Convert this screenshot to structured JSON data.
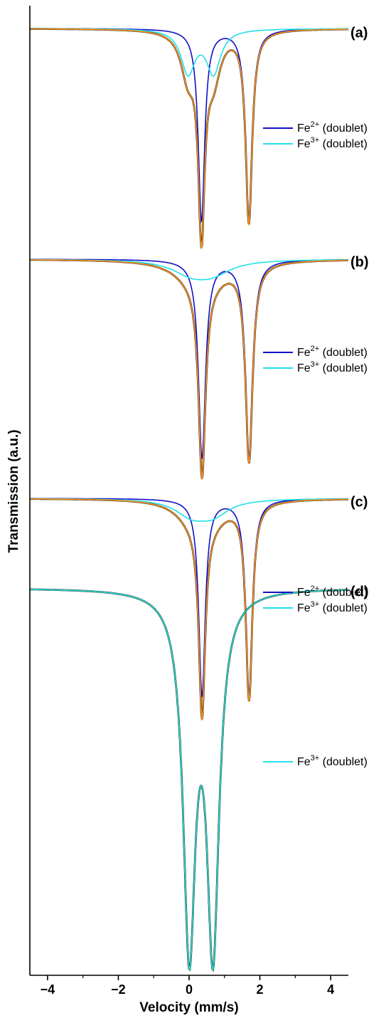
{
  "chart_data": {
    "type": "line",
    "xlabel": "Velocity (mm/s)",
    "ylabel": "Transmission (a.u.)",
    "xlim": [
      -4.5,
      4.5
    ],
    "x_ticks": [
      -4,
      -2,
      0,
      2,
      4
    ],
    "x_tick_labels": [
      "−4",
      "−2",
      "0",
      "2",
      "4"
    ],
    "colors": {
      "data": "#000000",
      "fe2": "#1010c8",
      "fe3": "#22e0e8",
      "total": "#f5921e",
      "total_d": "#3cbf9a"
    },
    "panels": [
      {
        "label": "(a)",
        "legend": [
          {
            "ion": "Fe",
            "charge": "2+",
            "text": " (doublet)",
            "series": "fe2"
          },
          {
            "ion": "Fe",
            "charge": "3+",
            "text": " (doublet)",
            "series": "fe3"
          }
        ],
        "series": [
          {
            "key": "fe2",
            "center": 1.02,
            "splitting": 1.34,
            "width": 0.22,
            "depth": 0.93
          },
          {
            "key": "fe3",
            "center": 0.33,
            "splitting": 0.72,
            "width": 0.48,
            "depth": 0.21
          }
        ],
        "noise": 0.055,
        "y_range": [
          -0.1,
          1.0
        ]
      },
      {
        "label": "(b)",
        "legend": [
          {
            "ion": "Fe",
            "charge": "2+",
            "text": " (doublet)",
            "series": "fe2"
          },
          {
            "ion": "Fe",
            "charge": "3+",
            "text": " (doublet)",
            "series": "fe3"
          }
        ],
        "series": [
          {
            "key": "fe2",
            "center": 1.03,
            "splitting": 1.33,
            "width": 0.24,
            "depth": 0.95
          },
          {
            "key": "fe3",
            "center": 0.35,
            "splitting": 0.6,
            "width": 1.3,
            "depth": 0.06
          }
        ],
        "noise": 0.045,
        "y_range": [
          -0.1,
          1.0
        ]
      },
      {
        "label": "(c)",
        "legend": [
          {
            "ion": "Fe",
            "charge": "2+",
            "text": " (doublet)",
            "series": "fe2"
          },
          {
            "ion": "Fe",
            "charge": "3+",
            "text": " (doublet)",
            "series": "fe3"
          }
        ],
        "series": [
          {
            "key": "fe2",
            "center": 1.03,
            "splitting": 1.33,
            "width": 0.22,
            "depth": 0.93
          },
          {
            "key": "fe3",
            "center": 0.36,
            "splitting": 0.6,
            "width": 1.1,
            "depth": 0.07
          }
        ],
        "noise": 0.05,
        "y_range": [
          -0.1,
          1.0
        ]
      },
      {
        "label": "(d)",
        "legend": [
          {
            "ion": "Fe",
            "charge": "3+",
            "text": " (doublet)",
            "series": "fe3"
          }
        ],
        "series": [
          {
            "key": "fe3",
            "center": 0.34,
            "splitting": 0.67,
            "width": 0.42,
            "depth": 0.9
          }
        ],
        "noise": 0.02,
        "y_range": [
          -0.05,
          1.02
        ]
      }
    ]
  }
}
